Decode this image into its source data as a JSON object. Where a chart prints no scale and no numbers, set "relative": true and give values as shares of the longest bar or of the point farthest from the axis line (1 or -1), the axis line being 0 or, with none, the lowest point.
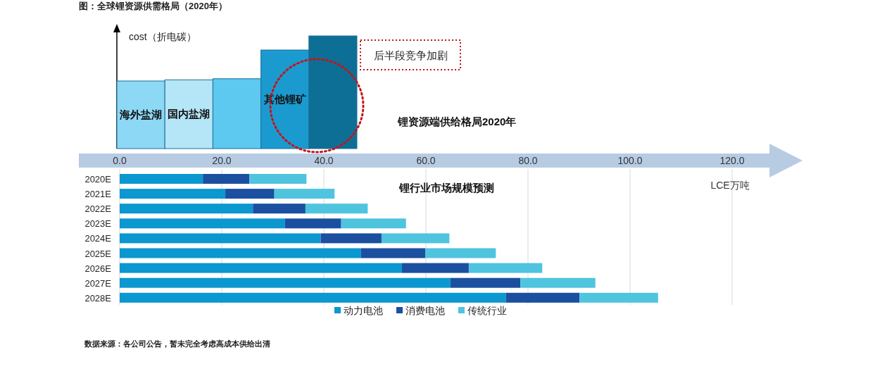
{
  "chart_data": [
    {
      "type": "bar",
      "title": "图：全球锂资源供需格局（2020年）",
      "ylabel": "cost（折电碳）",
      "relative": true,
      "categories": [
        "海外盐湖",
        "国内盐湖",
        null,
        "其他锂矿",
        null
      ],
      "values": [
        0.6,
        0.61,
        0.62,
        0.875,
        1
      ],
      "colors": [
        "#8dd8f5",
        "#b5e6f7",
        "#5dc8f0",
        "#1b9ad0",
        "#0e6f96"
      ],
      "annotations": [
        "后半段竞争加剧",
        "锂资源端供给格局2020年"
      ]
    },
    {
      "type": "bar",
      "orientation": "horizontal",
      "stacked": true,
      "title": "锂行业市场规模预测",
      "xlabel": "LCE万吨",
      "categories": [
        "2020E",
        "2021E",
        "2022E",
        "2023E",
        "2024E",
        "2025E",
        "2026E",
        "2027E",
        "2028E"
      ],
      "series": [
        {
          "name": "动力电池",
          "color": "#0b97cf",
          "values": [
            16.3,
            20.7,
            26.1,
            32.4,
            39.4,
            47.3,
            55.3,
            64.8,
            75.7
          ]
        },
        {
          "name": "消费电池",
          "color": "#1b4fa0",
          "values": [
            9.1,
            9.6,
            10.3,
            11.0,
            11.9,
            12.6,
            13.1,
            13.7,
            14.4
          ]
        },
        {
          "name": "传统行业",
          "color": "#4fc4df",
          "values": [
            11.2,
            11.8,
            12.2,
            12.7,
            13.3,
            13.8,
            14.4,
            14.7,
            15.4
          ]
        }
      ],
      "xlim": [
        0,
        120
      ],
      "xticks": [
        {
          "value": 0,
          "label": "0.0"
        },
        {
          "value": 20,
          "label": "20.0"
        },
        {
          "value": 40,
          "label": "40.0"
        },
        {
          "value": 60,
          "label": "60.0"
        },
        {
          "value": 80,
          "label": "80.0"
        },
        {
          "value": 100,
          "label": "100.0"
        },
        {
          "value": 120,
          "label": "120.0"
        }
      ],
      "grid": "x",
      "legend": "bottom",
      "annotations": [
        "数据来源：各公司公告，暂未完全考虑高成本供给出清"
      ]
    }
  ]
}
